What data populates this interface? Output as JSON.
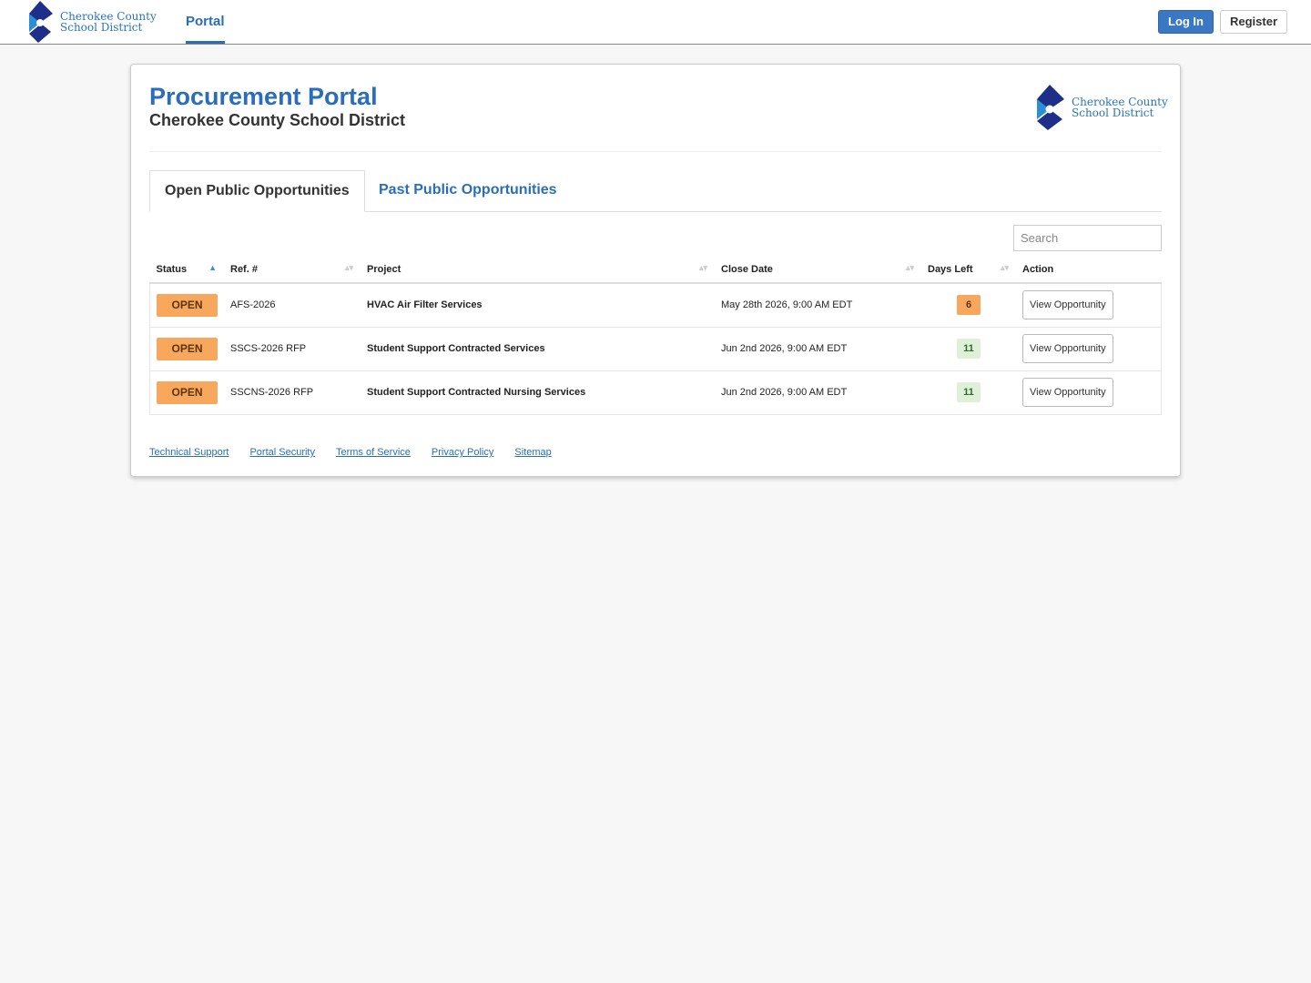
{
  "nav": {
    "logo_line1": "Cherokee County",
    "logo_line2": "School District",
    "portal": "Portal",
    "login": "Log In",
    "register": "Register"
  },
  "header": {
    "title": "Procurement Portal",
    "subtitle": "Cherokee County School District",
    "logo_line1": "Cherokee County",
    "logo_line2": "School District"
  },
  "tabs": [
    "Open Public Opportunities",
    "Past Public Opportunities"
  ],
  "search_placeholder": "Search",
  "table": {
    "columns": [
      "Status",
      "Ref. #",
      "Project",
      "Close Date",
      "Days Left",
      "Action"
    ],
    "rows": [
      [
        "OPEN",
        "AFS-2026",
        "HVAC Air Filter Services",
        "May 28th 2026, 9:00 AM EDT",
        6,
        "View Opportunity"
      ],
      [
        "OPEN",
        "SSCS-2026 RFP",
        "Student Support Contracted Services",
        "Jun 2nd 2026, 9:00 AM EDT",
        11,
        "View Opportunity"
      ],
      [
        "OPEN",
        "SSCNS-2026 RFP",
        "Student Support Contracted Nursing Services",
        "Jun 2nd 2026, 9:00 AM EDT",
        11,
        "View Opportunity"
      ]
    ],
    "days_left_colors": [
      "#f7a85c",
      "#dff0d8",
      "#dff0d8"
    ]
  },
  "footer_links": [
    "Technical Support",
    "Portal Security",
    "Terms of Service",
    "Privacy Policy",
    "Sitemap"
  ]
}
